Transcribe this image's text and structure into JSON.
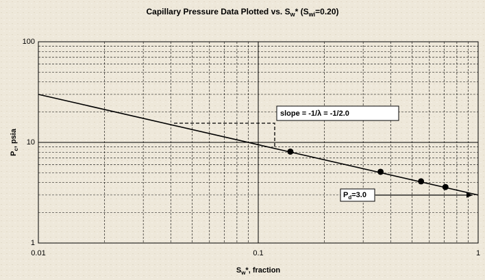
{
  "chart_data": {
    "type": "line",
    "title_parts": [
      "Capillary Pressure Data Plotted vs. S",
      "w",
      "* (S",
      "wi",
      "=0.20)"
    ],
    "x_label_parts": [
      "S",
      "w",
      "*, fraction"
    ],
    "y_label_parts": [
      "P",
      "c",
      ", psia"
    ],
    "series": [
      {
        "x": [
          0.01,
          1
        ],
        "values": [
          30,
          3
        ],
        "color": "#000000",
        "marker": false
      },
      {
        "x": [
          0.14,
          0.36,
          0.55,
          0.71
        ],
        "values": [
          8.1,
          5.1,
          4.1,
          3.6
        ],
        "color": "#000000",
        "marker": true
      }
    ],
    "xlim": [
      0.01,
      1
    ],
    "ylim": [
      1,
      100
    ],
    "xticks": [
      0.01,
      0.1,
      1
    ],
    "yticks": [
      1,
      10,
      100
    ],
    "x_log": true,
    "y_log": true,
    "grid": true,
    "minor_grid": true,
    "slope_label": "slope = -1/λ = -1/2.0",
    "pd_label_parts": [
      "P",
      "d",
      "=3.0"
    ]
  }
}
